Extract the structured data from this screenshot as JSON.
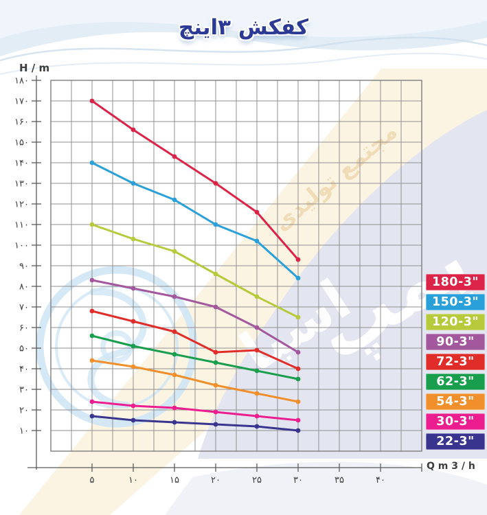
{
  "page": {
    "title": "کفکش ۳اینچ",
    "y_axis_label": "H / m",
    "x_axis_label": "Q m 3 / h"
  },
  "watermarks": {
    "band_text": "مجتمع تولیدی",
    "logo_text_1": "پمپ",
    "logo_text_2": "اسپا"
  },
  "chart_data": {
    "type": "line",
    "title": "کفکش ۳اینچ",
    "xlabel": "Q m 3 / h",
    "ylabel": "H / m",
    "x": [
      5,
      10,
      15,
      20,
      25,
      30
    ],
    "xlim": [
      0,
      45
    ],
    "ylim": [
      0,
      180
    ],
    "grid": true,
    "grid_step_x": 2.5,
    "grid_step_y": 10,
    "legend_position": "right",
    "x_ticks": [
      {
        "v": 5,
        "label": "۵"
      },
      {
        "v": 10,
        "label": "۱۰"
      },
      {
        "v": 15,
        "label": "۱۵"
      },
      {
        "v": 20,
        "label": "۲۰"
      },
      {
        "v": 25,
        "label": "۲۵"
      },
      {
        "v": 30,
        "label": "۳۰"
      },
      {
        "v": 35,
        "label": "۳۵"
      },
      {
        "v": 40,
        "label": "۴۰"
      }
    ],
    "y_ticks": [
      {
        "v": 180,
        "label": "۱۸۰"
      },
      {
        "v": 170,
        "label": "۱۷۰"
      },
      {
        "v": 160,
        "label": "۱۶۰"
      },
      {
        "v": 150,
        "label": "۱۵۰"
      },
      {
        "v": 140,
        "label": "۱۴۰"
      },
      {
        "v": 130,
        "label": "۱۳۰"
      },
      {
        "v": 120,
        "label": "۱۲۰"
      },
      {
        "v": 110,
        "label": "۱۱۰"
      },
      {
        "v": 100,
        "label": "۱۰۰"
      },
      {
        "v": 90,
        "label": "۹۰"
      },
      {
        "v": 80,
        "label": "۸۰"
      },
      {
        "v": 70,
        "label": "۷۰"
      },
      {
        "v": 60,
        "label": "۶۰"
      },
      {
        "v": 50,
        "label": "۵۰"
      },
      {
        "v": 40,
        "label": "۴۰"
      },
      {
        "v": 30,
        "label": "۳۰"
      },
      {
        "v": 20,
        "label": "۲۰"
      },
      {
        "v": 10,
        "label": "۱۰"
      }
    ],
    "series": [
      {
        "name": "180-3\"",
        "color": "#dc2348",
        "values": [
          170,
          156,
          143,
          130,
          116,
          93
        ]
      },
      {
        "name": "150-3\"",
        "color": "#2aa0da",
        "values": [
          140,
          130,
          122,
          110,
          102,
          84
        ]
      },
      {
        "name": "120-3\"",
        "color": "#b6ca3b",
        "values": [
          110,
          103,
          97,
          86,
          75,
          65
        ]
      },
      {
        "name": "90-3\"",
        "color": "#a3589e",
        "values": [
          83,
          79,
          75,
          70,
          60,
          48
        ]
      },
      {
        "name": "72-3\"",
        "color": "#e12d29",
        "values": [
          68,
          63,
          58,
          48,
          49,
          40
        ]
      },
      {
        "name": "62-3\"",
        "color": "#189e4d",
        "values": [
          56,
          51,
          47,
          43,
          39,
          35
        ]
      },
      {
        "name": "54-3\"",
        "color": "#f08f2b",
        "values": [
          44,
          41,
          37,
          32,
          28,
          24
        ]
      },
      {
        "name": "30-3\"",
        "color": "#ec1e8f",
        "values": [
          24,
          22,
          21,
          19,
          17,
          15
        ]
      },
      {
        "name": "22-3\"",
        "color": "#39358f",
        "values": [
          17,
          15,
          14,
          13,
          12,
          10
        ]
      }
    ]
  }
}
